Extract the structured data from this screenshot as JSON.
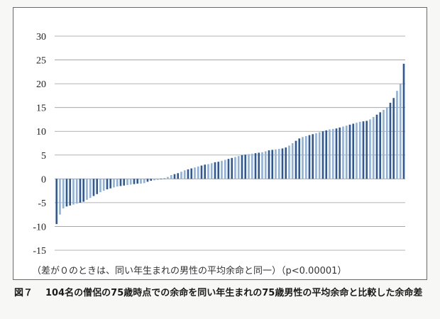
{
  "chart_data": {
    "type": "bar",
    "ylim": [
      -15,
      30
    ],
    "yticks": [
      30,
      25,
      20,
      15,
      10,
      5,
      0,
      -5,
      -10,
      -15
    ],
    "grid": true,
    "values": [
      -9.5,
      -7.5,
      -6.2,
      -5.8,
      -5.6,
      -5.4,
      -5.2,
      -5.0,
      -4.8,
      -4.4,
      -4.0,
      -3.6,
      -3.2,
      -2.8,
      -2.5,
      -2.2,
      -2.0,
      -1.8,
      -1.6,
      -1.5,
      -1.4,
      -1.3,
      -1.2,
      -1.1,
      -1.0,
      -1.0,
      -0.9,
      -0.6,
      -0.4,
      -0.3,
      -0.2,
      -0.1,
      0.1,
      0.4,
      0.8,
      1.0,
      1.2,
      1.5,
      1.8,
      2.0,
      2.2,
      2.4,
      2.6,
      2.8,
      3.0,
      3.1,
      3.3,
      3.5,
      3.6,
      3.8,
      4.0,
      4.2,
      4.4,
      4.6,
      4.8,
      5.0,
      5.1,
      5.2,
      5.3,
      5.4,
      5.5,
      5.6,
      5.8,
      6.0,
      6.1,
      6.2,
      6.3,
      6.4,
      6.6,
      7.0,
      7.5,
      8.0,
      8.5,
      8.8,
      9.0,
      9.2,
      9.4,
      9.6,
      9.8,
      10.0,
      10.2,
      10.4,
      10.5,
      10.6,
      10.8,
      11.0,
      11.2,
      11.4,
      11.6,
      11.8,
      12.0,
      12.1,
      12.2,
      12.5,
      13.0,
      13.5,
      14.0,
      14.5,
      15.0,
      16.0,
      17.0,
      18.5,
      20.0,
      24.2
    ],
    "note": "（差が０のときは、同い年生まれの男性の平均余命と同一）（p<0.00001）"
  },
  "caption": {
    "label": "図７",
    "text": "104名の僧侶の75歳時点での余命を同い年生まれの75歳男性の平均余命と比較した余命差"
  },
  "colors": {
    "bar_dark": "#2f5896",
    "bar_light": "#8fb0da",
    "grid": "#9a9a9a"
  }
}
